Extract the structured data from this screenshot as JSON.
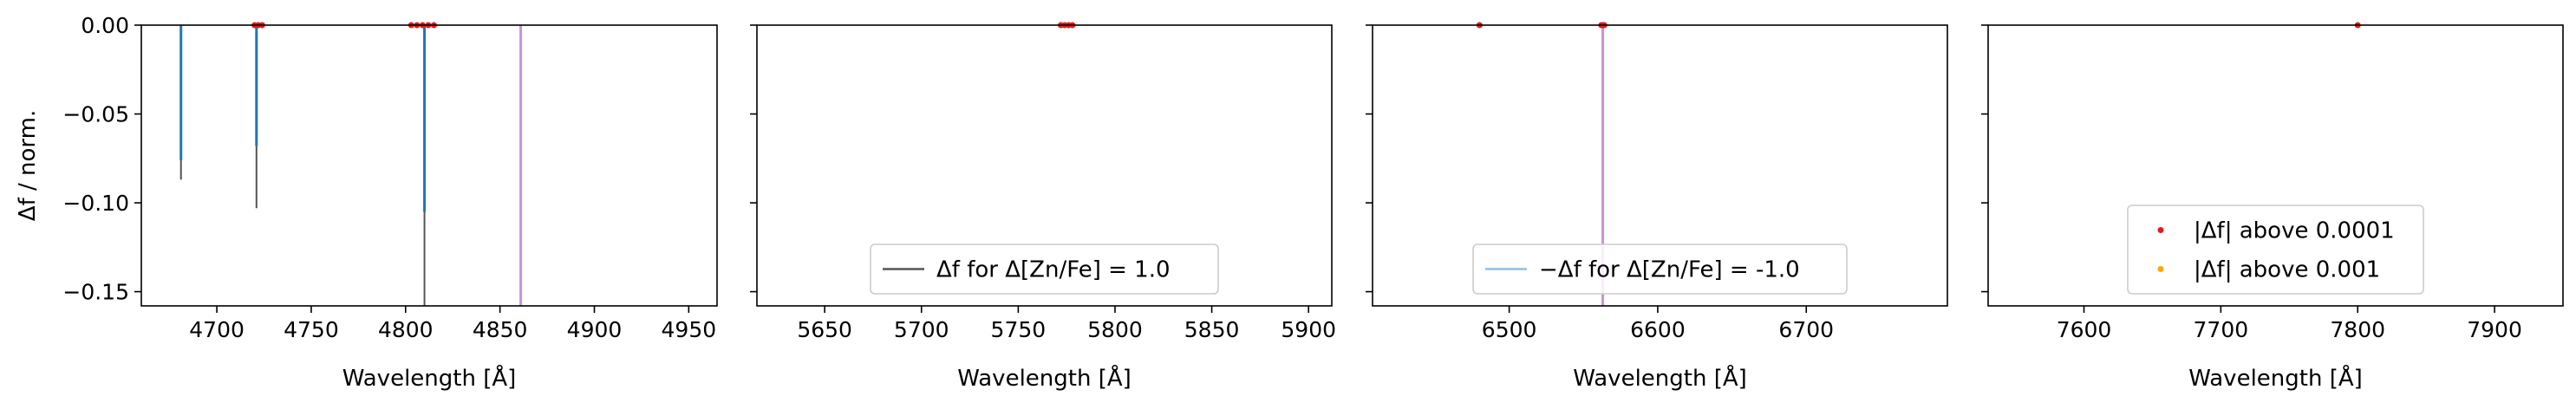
{
  "chart_data": [
    {
      "type": "line",
      "xlabel": "Wavelength [Å]",
      "ylabel": "Δf / norm.",
      "xlim": [
        4660,
        4965
      ],
      "ylim": [
        -0.158,
        0.0
      ],
      "xticks": [
        4700,
        4750,
        4800,
        4850,
        4900,
        4950
      ],
      "yticks": [
        0.0,
        -0.05,
        -0.1,
        -0.15
      ],
      "ytick_labels": [
        "0.00",
        "−0.05",
        "−0.10",
        "−0.15"
      ],
      "grid": false,
      "series": [
        {
          "role": "delta_f_pos",
          "color": "#555555",
          "lines": [
            [
              4681,
              -0.087
            ],
            [
              4721,
              -0.103
            ],
            [
              4810,
              -0.158
            ]
          ]
        },
        {
          "role": "delta_f_neg",
          "color": "#1f77b4",
          "lines": [
            [
              4681,
              -0.076
            ],
            [
              4721,
              -0.068
            ],
            [
              4810,
              -0.105
            ]
          ]
        }
      ],
      "markers_red": [
        4720,
        4722,
        4724,
        4803,
        4806,
        4809,
        4812,
        4815
      ],
      "markers_orange": [],
      "vlines": [
        {
          "x": 4861,
          "color": "#c994d4"
        }
      ]
    },
    {
      "type": "line",
      "xlabel": "Wavelength [Å]",
      "ylabel": "",
      "xlim": [
        5615,
        5912
      ],
      "ylim": [
        -0.158,
        0.0
      ],
      "xticks": [
        5650,
        5700,
        5750,
        5800,
        5850,
        5900
      ],
      "yticks": [
        0.0,
        -0.05,
        -0.1,
        -0.15
      ],
      "grid": false,
      "series": [],
      "markers_red": [
        5772,
        5774,
        5776,
        5778
      ],
      "markers_orange": [],
      "vlines": [],
      "legend": {
        "position": "lower center",
        "entries": [
          {
            "label": "Δf for Δ[Zn/Fe] = 1.0",
            "color": "#555555",
            "kind": "line"
          }
        ]
      }
    },
    {
      "type": "line",
      "xlabel": "Wavelength [Å]",
      "ylabel": "",
      "xlim": [
        6408,
        6795
      ],
      "ylim": [
        -0.158,
        0.0
      ],
      "xticks": [
        6500,
        6600,
        6700
      ],
      "yticks": [
        0.0,
        -0.05,
        -0.1,
        -0.15
      ],
      "grid": false,
      "series": [],
      "markers_red": [
        6480,
        6562,
        6563,
        6564
      ],
      "markers_orange": [],
      "vlines": [
        {
          "x": 6563,
          "color": "#c994d4"
        }
      ],
      "legend": {
        "position": "lower center",
        "entries": [
          {
            "label": "−Δf for Δ[Zn/Fe] = -1.0",
            "color": "#8fbfe0",
            "kind": "line"
          }
        ]
      }
    },
    {
      "type": "scatter",
      "xlabel": "Wavelength [Å]",
      "ylabel": "",
      "xlim": [
        7530,
        7950
      ],
      "ylim": [
        -0.158,
        0.0
      ],
      "xticks": [
        7600,
        7700,
        7800,
        7900
      ],
      "yticks": [
        0.0,
        -0.05,
        -0.1,
        -0.15
      ],
      "grid": false,
      "series": [],
      "markers_red": [
        7800
      ],
      "markers_orange": [],
      "vlines": [],
      "legend": {
        "position": "lower center",
        "entries": [
          {
            "label": "|Δf| above 0.0001",
            "color": "#e31a1c",
            "kind": "dot"
          },
          {
            "label": "|Δf| above 0.001",
            "color": "#ffa500",
            "kind": "dot"
          }
        ]
      }
    }
  ]
}
